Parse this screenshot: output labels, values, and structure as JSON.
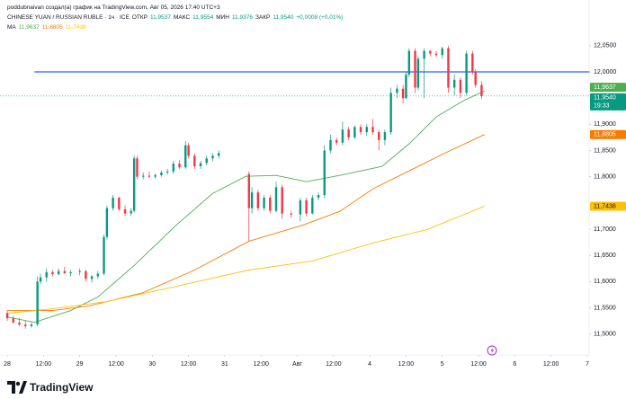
{
  "header": {
    "attribution": "poddubnaivan создал(а) график на TradingView.com, Авг 05, 2026 17:40 UTC+3",
    "symbol": "CHINESE YUAN / RUSSIAN RUBLE · 1ч · ICE",
    "ohlc": [
      {
        "name": "ОТКР",
        "value": "11,9537"
      },
      {
        "name": "МАКС",
        "value": "11,9554"
      },
      {
        "name": "МИН",
        "value": "11,9376"
      },
      {
        "name": "ЗАКР",
        "value": "11,9540"
      }
    ],
    "change": "+0,0008 (+0,01%)"
  },
  "footer": {
    "brand": "TradingView"
  },
  "chart_data": {
    "type": "candlestick",
    "up_color": "#089981",
    "down_color": "#f23645",
    "x": [
      0,
      2,
      4,
      6,
      8,
      10,
      11,
      13,
      15,
      17,
      19,
      21,
      24,
      26,
      28,
      30,
      32,
      33,
      35,
      37,
      39,
      41,
      42,
      43,
      45,
      47,
      49,
      51,
      53,
      55,
      57,
      59,
      60,
      62,
      64,
      66,
      68,
      70,
      80,
      81,
      83,
      85,
      87,
      89,
      91,
      94,
      97,
      99,
      101,
      103,
      105,
      107,
      109,
      111,
      113,
      115,
      117,
      119,
      121,
      123,
      125,
      127,
      129,
      131,
      132,
      133,
      135,
      136,
      138,
      140,
      142,
      144,
      146,
      148,
      150,
      152,
      154,
      155,
      157
    ],
    "open": [
      11.54,
      11.53,
      11.522,
      11.518,
      11.515,
      11.518,
      11.6,
      11.608,
      11.618,
      11.614,
      11.62,
      11.616,
      11.618,
      11.62,
      11.605,
      11.61,
      11.615,
      11.685,
      11.74,
      11.76,
      11.738,
      11.73,
      11.735,
      11.835,
      11.8,
      11.802,
      11.8,
      11.803,
      11.808,
      11.81,
      11.825,
      11.818,
      11.86,
      11.84,
      11.82,
      11.826,
      11.835,
      11.84,
      11.805,
      11.74,
      11.77,
      11.74,
      11.76,
      11.735,
      11.78,
      11.73,
      11.728,
      11.755,
      11.73,
      11.76,
      11.765,
      11.85,
      11.87,
      11.865,
      11.89,
      11.875,
      11.895,
      11.885,
      11.895,
      11.885,
      11.87,
      11.885,
      11.96,
      11.968,
      11.95,
      11.995,
      12.04,
      11.97,
      12.025,
      12.04,
      12.035,
      12.032,
      12.045,
      11.97,
      11.985,
      11.96,
      12.035,
      12.0,
      11.975
    ],
    "high": [
      11.545,
      11.535,
      11.53,
      11.525,
      11.522,
      11.61,
      11.615,
      11.625,
      11.622,
      11.625,
      11.628,
      11.622,
      11.625,
      11.622,
      11.612,
      11.62,
      11.69,
      11.745,
      11.765,
      11.762,
      11.745,
      11.74,
      11.84,
      11.84,
      11.808,
      11.81,
      11.806,
      11.812,
      11.815,
      11.83,
      11.832,
      11.868,
      11.865,
      11.845,
      11.83,
      11.84,
      11.845,
      11.85,
      11.81,
      11.78,
      11.775,
      11.765,
      11.765,
      11.79,
      11.785,
      11.735,
      11.76,
      11.76,
      11.765,
      11.77,
      11.86,
      11.88,
      11.875,
      11.905,
      11.895,
      11.898,
      11.9,
      11.9,
      11.91,
      11.89,
      11.89,
      11.97,
      11.975,
      11.975,
      12.0,
      12.045,
      12.045,
      12.03,
      12.045,
      12.042,
      12.04,
      12.048,
      12.05,
      11.995,
      11.99,
      12.04,
      12.04,
      12.005,
      11.982
    ],
    "low": [
      11.525,
      11.52,
      11.515,
      11.51,
      11.512,
      11.515,
      11.595,
      11.6,
      11.61,
      11.612,
      11.615,
      11.61,
      11.612,
      11.6,
      11.598,
      11.605,
      11.612,
      11.68,
      11.735,
      11.735,
      11.725,
      11.725,
      11.732,
      11.795,
      11.795,
      11.798,
      11.796,
      11.8,
      11.804,
      11.806,
      11.815,
      11.815,
      11.835,
      11.815,
      11.815,
      11.822,
      11.83,
      11.835,
      11.677,
      11.73,
      11.735,
      11.735,
      11.73,
      11.732,
      11.72,
      11.722,
      11.715,
      11.725,
      11.728,
      11.755,
      11.76,
      11.845,
      11.86,
      11.86,
      11.87,
      11.872,
      11.88,
      11.878,
      11.88,
      11.85,
      11.86,
      11.88,
      11.95,
      11.94,
      11.948,
      11.99,
      11.96,
      11.965,
      11.95,
      12.03,
      12.028,
      12.025,
      11.96,
      11.955,
      11.95,
      11.955,
      11.995,
      11.97,
      11.948
    ],
    "close": [
      11.53,
      11.522,
      11.518,
      11.515,
      11.518,
      11.6,
      11.608,
      11.618,
      11.614,
      11.62,
      11.616,
      11.618,
      11.62,
      11.605,
      11.61,
      11.615,
      11.685,
      11.74,
      11.76,
      11.738,
      11.73,
      11.735,
      11.835,
      11.8,
      11.802,
      11.8,
      11.803,
      11.808,
      11.81,
      11.825,
      11.818,
      11.86,
      11.84,
      11.82,
      11.826,
      11.835,
      11.84,
      11.845,
      11.74,
      11.77,
      11.74,
      11.76,
      11.735,
      11.78,
      11.73,
      11.728,
      11.755,
      11.73,
      11.76,
      11.765,
      11.85,
      11.87,
      11.865,
      11.89,
      11.875,
      11.895,
      11.885,
      11.895,
      11.885,
      11.87,
      11.885,
      11.96,
      11.968,
      11.95,
      11.995,
      12.04,
      11.97,
      12.025,
      12.04,
      12.035,
      12.032,
      12.045,
      11.97,
      11.985,
      11.96,
      12.035,
      12.0,
      11.975,
      11.954
    ],
    "last_label": "11,9540",
    "countdown": "19:33",
    "ma_label": "MA",
    "series": [
      {
        "color": "#4caf50",
        "value_label": "11,9637",
        "x": [
          0,
          9,
          21,
          30,
          42,
          56,
          68,
          79,
          89,
          99,
          110,
          124,
          133,
          142,
          151,
          158
        ],
        "values": [
          11.5326,
          11.5223,
          11.5447,
          11.5705,
          11.6306,
          11.708,
          11.7681,
          11.8008,
          11.8025,
          11.7905,
          11.8025,
          11.8197,
          11.8626,
          11.9142,
          11.9452,
          11.9637
        ]
      },
      {
        "color": "#f57c00",
        "value_label": "11,8805",
        "x": [
          0,
          15,
          27,
          45,
          62,
          80,
          98,
          110,
          121,
          133,
          145,
          158
        ],
        "values": [
          11.5447,
          11.5447,
          11.5533,
          11.579,
          11.622,
          11.677,
          11.708,
          11.7337,
          11.7767,
          11.8111,
          11.8455,
          11.8805
        ]
      },
      {
        "color": "#ffc107",
        "value_label": "11,7438",
        "x": [
          0,
          15,
          33,
          56,
          80,
          101,
          121,
          139,
          158
        ],
        "values": [
          11.5395,
          11.5481,
          11.5619,
          11.5911,
          11.622,
          11.6392,
          11.6736,
          11.6994,
          11.7438
        ]
      }
    ],
    "hline": {
      "value": 12.0,
      "x": 9,
      "color": "#2962ff"
    },
    "xlim": [
      -2.4,
      192.6
    ],
    "xticks": [
      {
        "value": 0,
        "label": "28"
      },
      {
        "value": 12,
        "label": "12:00"
      },
      {
        "value": 24,
        "label": "29"
      },
      {
        "value": 36,
        "label": "12:00"
      },
      {
        "value": 48,
        "label": "30"
      },
      {
        "value": 60,
        "label": "12:00"
      },
      {
        "value": 72,
        "label": "31"
      },
      {
        "value": 84,
        "label": "12:00"
      },
      {
        "value": 96,
        "label": "Авг"
      },
      {
        "value": 108,
        "label": "12:00"
      },
      {
        "value": 120,
        "label": "4"
      },
      {
        "value": 132,
        "label": "12:00"
      },
      {
        "value": 144,
        "label": "5"
      },
      {
        "value": 156,
        "label": "12:00"
      },
      {
        "value": 168,
        "label": "6"
      },
      {
        "value": 180,
        "label": "12:00"
      },
      {
        "value": 192,
        "label": "7"
      }
    ],
    "ylim": [
      11.46,
      12.12
    ],
    "yticks": [
      {
        "value": 12.05,
        "label": "12,0500"
      },
      {
        "value": 12.0,
        "label": "12,0000"
      },
      {
        "value": 11.9,
        "label": "11,9000"
      },
      {
        "value": 11.85,
        "label": "11,8500"
      },
      {
        "value": 11.8,
        "label": "11,8000"
      },
      {
        "value": 11.7,
        "label": "11,7000"
      },
      {
        "value": 11.65,
        "label": "11,6500"
      },
      {
        "value": 11.6,
        "label": "11,6000"
      },
      {
        "value": 11.55,
        "label": "11,5500"
      },
      {
        "value": 11.5,
        "label": "11,5000"
      }
    ],
    "grid": false
  }
}
